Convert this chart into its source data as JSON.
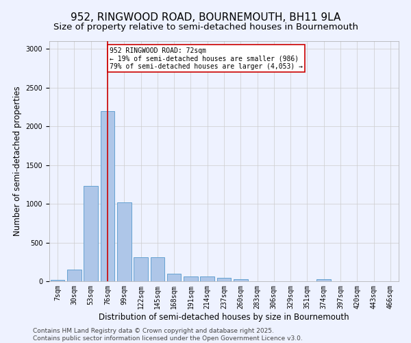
{
  "title_line1": "952, RINGWOOD ROAD, BOURNEMOUTH, BH11 9LA",
  "title_line2": "Size of property relative to semi-detached houses in Bournemouth",
  "xlabel": "Distribution of semi-detached houses by size in Bournemouth",
  "ylabel": "Number of semi-detached properties",
  "footer_line1": "Contains HM Land Registry data © Crown copyright and database right 2025.",
  "footer_line2": "Contains public sector information licensed under the Open Government Licence v3.0.",
  "bin_labels": [
    "7sqm",
    "30sqm",
    "53sqm",
    "76sqm",
    "99sqm",
    "122sqm",
    "145sqm",
    "168sqm",
    "191sqm",
    "214sqm",
    "237sqm",
    "260sqm",
    "283sqm",
    "306sqm",
    "329sqm",
    "351sqm",
    "374sqm",
    "397sqm",
    "420sqm",
    "443sqm",
    "466sqm"
  ],
  "bar_values": [
    15,
    150,
    1230,
    2200,
    1020,
    310,
    310,
    100,
    60,
    60,
    40,
    30,
    0,
    0,
    0,
    0,
    30,
    0,
    0,
    0,
    0
  ],
  "bar_color": "#aec6e8",
  "bar_edge_color": "#5599cc",
  "vline_x": 3,
  "annotation_text": "952 RINGWOOD ROAD: 72sqm\n← 19% of semi-detached houses are smaller (986)\n79% of semi-detached houses are larger (4,053) →",
  "annotation_box_color": "#ffffff",
  "annotation_box_edge_color": "#cc0000",
  "vline_color": "#cc0000",
  "grid_color": "#cccccc",
  "ylim": [
    0,
    3100
  ],
  "background_color": "#eef2ff",
  "title_fontsize": 11,
  "subtitle_fontsize": 9.5,
  "axis_label_fontsize": 8.5,
  "tick_fontsize": 7,
  "annotation_fontsize": 7,
  "footer_fontsize": 6.5
}
